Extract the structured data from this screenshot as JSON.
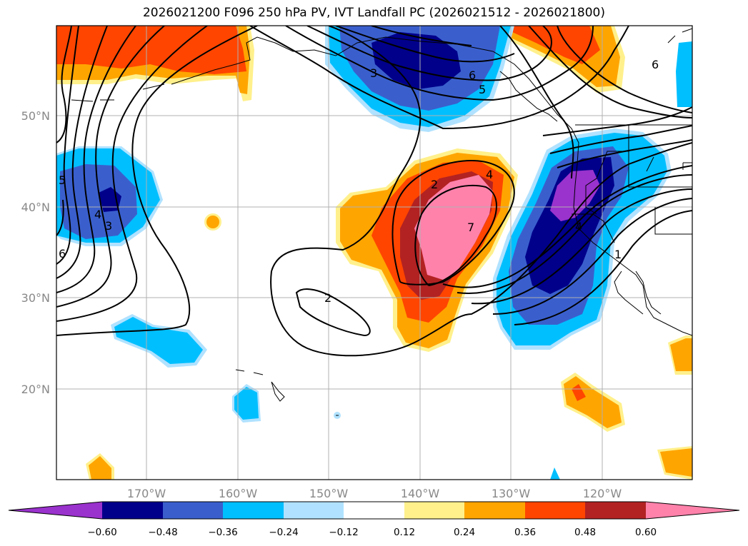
{
  "title": "2026021200 F096 250 hPa PV, IVT Landfall PC (2026021512 - 2026021800)",
  "map": {
    "lon_labels": [
      "170°W",
      "160°W",
      "150°W",
      "140°W",
      "130°W",
      "120°W"
    ],
    "lat_labels": [
      "50°N",
      "40°N",
      "30°N",
      "20°N"
    ]
  },
  "colorbar": {
    "colors": [
      "#9a32cd",
      "#00008b",
      "#3a5fcd",
      "#00bfff",
      "#b0e2ff",
      "#ffffff",
      "#fff08c",
      "#ffa500",
      "#ff4500",
      "#b22222",
      "#ff82ab"
    ],
    "labels": [
      "−0.60",
      "−0.48",
      "−0.36",
      "−0.24",
      "−0.12",
      "0.12",
      "0.24",
      "0.36",
      "0.48",
      "0.60"
    ]
  },
  "contour_labels": [
    "3",
    "6",
    "5",
    "6",
    "5",
    "4",
    "3",
    "6",
    "2",
    "4",
    "7",
    "2",
    "1",
    "4"
  ],
  "colors": {
    "coast": "#000000",
    "grid": "#b0b0b0",
    "contour": "#000000"
  }
}
